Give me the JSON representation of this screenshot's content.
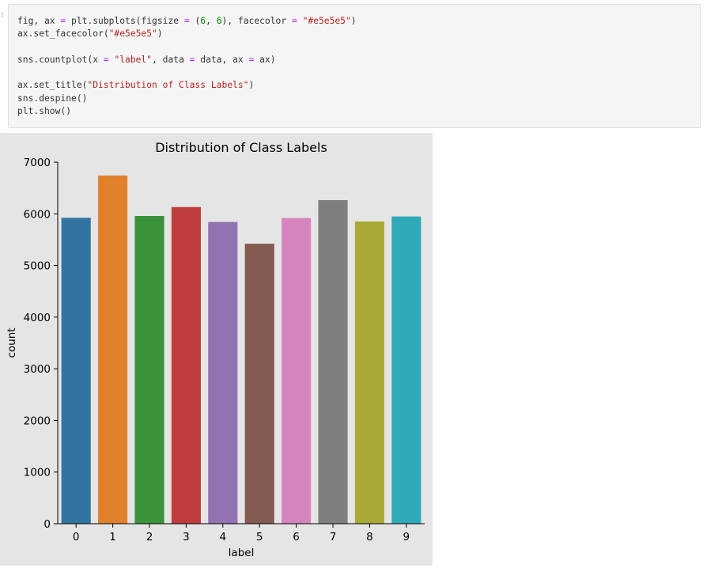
{
  "cell": {
    "prompt_marker": ":",
    "code_lines": [
      [
        {
          "t": "fig, ax ",
          "c": "k"
        },
        {
          "t": "=",
          "c": "o"
        },
        {
          "t": " plt.subplots(figsize ",
          "c": "k"
        },
        {
          "t": "=",
          "c": "o"
        },
        {
          "t": " (",
          "c": "k"
        },
        {
          "t": "6",
          "c": "n"
        },
        {
          "t": ", ",
          "c": "k"
        },
        {
          "t": "6",
          "c": "n"
        },
        {
          "t": "), facecolor ",
          "c": "k"
        },
        {
          "t": "=",
          "c": "o"
        },
        {
          "t": " ",
          "c": "k"
        },
        {
          "t": "\"#e5e5e5\"",
          "c": "s"
        },
        {
          "t": ")",
          "c": "k"
        }
      ],
      [
        {
          "t": "ax.set_facecolor(",
          "c": "k"
        },
        {
          "t": "\"#e5e5e5\"",
          "c": "s"
        },
        {
          "t": ")",
          "c": "k"
        }
      ],
      [],
      [
        {
          "t": "sns.countplot(x ",
          "c": "k"
        },
        {
          "t": "=",
          "c": "o"
        },
        {
          "t": " ",
          "c": "k"
        },
        {
          "t": "\"label\"",
          "c": "s"
        },
        {
          "t": ", data ",
          "c": "k"
        },
        {
          "t": "=",
          "c": "o"
        },
        {
          "t": " data, ax ",
          "c": "k"
        },
        {
          "t": "=",
          "c": "o"
        },
        {
          "t": " ax)",
          "c": "k"
        }
      ],
      [],
      [
        {
          "t": "ax.set_title(",
          "c": "k"
        },
        {
          "t": "\"Distribution of Class Labels\"",
          "c": "s"
        },
        {
          "t": ")",
          "c": "k"
        }
      ],
      [
        {
          "t": "sns.despine()",
          "c": "k"
        }
      ],
      [
        {
          "t": "plt.show()",
          "c": "k"
        }
      ]
    ]
  },
  "chart_data": {
    "type": "bar",
    "title": "Distribution of Class Labels",
    "xlabel": "label",
    "ylabel": "count",
    "categories": [
      "0",
      "1",
      "2",
      "3",
      "4",
      "5",
      "6",
      "7",
      "8",
      "9"
    ],
    "values": [
      5923,
      6742,
      5958,
      6131,
      5842,
      5421,
      5918,
      6265,
      5851,
      5949
    ],
    "ylim": [
      0,
      7000
    ],
    "yticks": [
      0,
      1000,
      2000,
      3000,
      4000,
      5000,
      6000,
      7000
    ],
    "colors": [
      "#3274a1",
      "#e1812c",
      "#3a923a",
      "#c03d3e",
      "#9372b2",
      "#845b53",
      "#d684bd",
      "#7f7f7f",
      "#a9aa35",
      "#2ea9b8"
    ],
    "facecolor": "#e5e5e5",
    "grid": false,
    "spines": [
      "left",
      "bottom"
    ]
  }
}
